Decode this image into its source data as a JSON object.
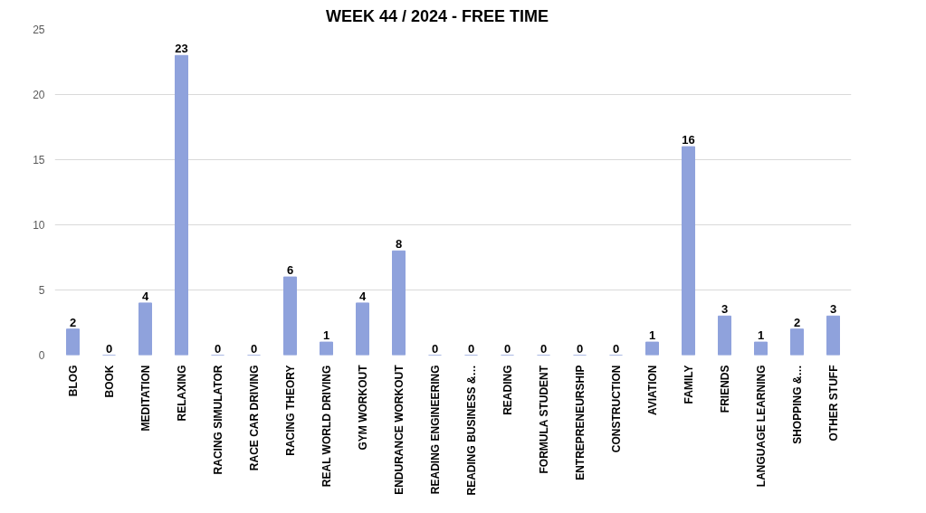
{
  "chart_data": {
    "type": "bar",
    "title": "WEEK  44  / 2024      - FREE TIME",
    "categories": [
      "BLOG",
      "BOOK",
      "MEDITATION",
      "RELAXING",
      "RACING SIMULATOR",
      "RACE CAR DRIVING",
      "RACING THEORY",
      "REAL WORLD DRIVING",
      "GYM WORKOUT",
      "ENDURANCE WORKOUT",
      "READING ENGINEERING",
      "READING BUSINESS &…",
      "READING",
      "FORMULA STUDENT",
      "ENTREPRENEURSHIP",
      "CONSTRUCTION",
      "AVIATION",
      "FAMILY",
      "FRIENDS",
      "LANGUAGE LEARNING",
      "SHOPPING &…",
      "OTHER STUFF"
    ],
    "values": [
      2,
      0,
      4,
      23,
      0,
      0,
      6,
      1,
      4,
      8,
      0,
      0,
      0,
      0,
      0,
      0,
      1,
      16,
      3,
      1,
      2,
      3
    ],
    "color": "#8fa2dc",
    "ylim": [
      0,
      25
    ],
    "yticks": [
      0,
      5,
      10,
      15,
      20,
      25
    ],
    "grid": "y",
    "data_labels": true
  }
}
